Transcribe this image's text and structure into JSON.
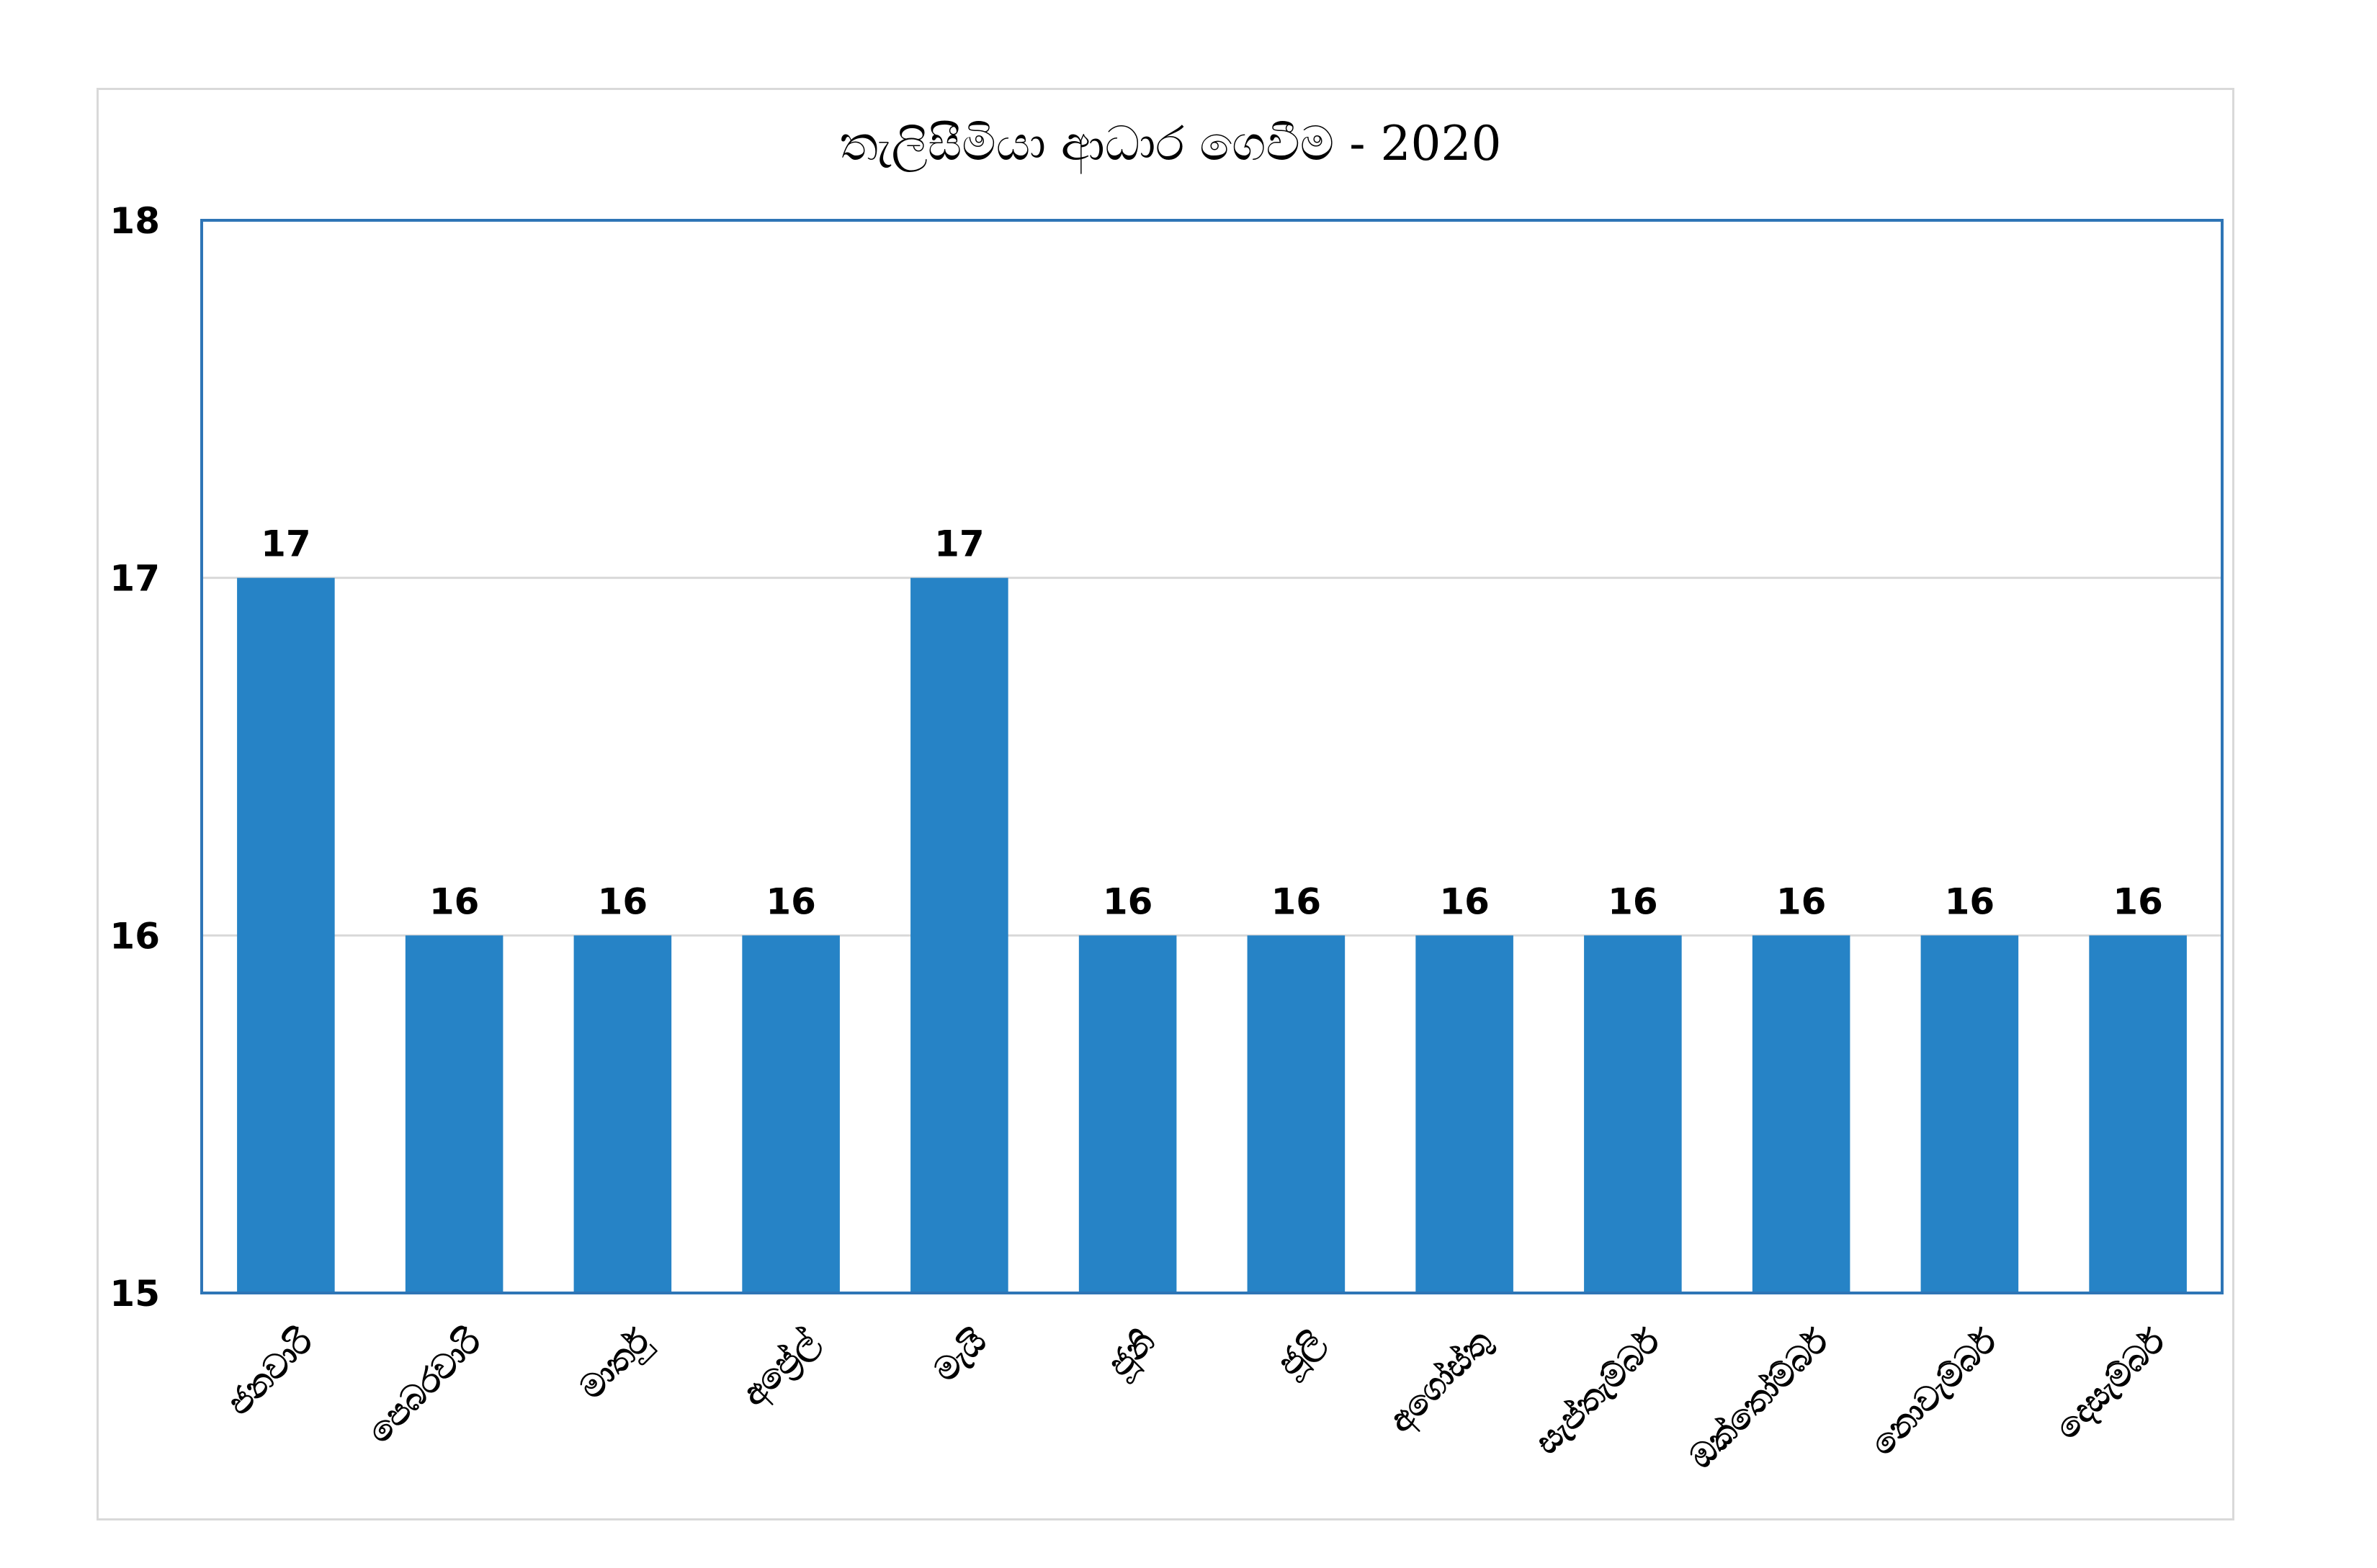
{
  "chart_data": {
    "type": "bar",
    "title": "තැලිසීමියා ආධාර ගෙවීම - 2020",
    "xlabel": "",
    "ylabel": "",
    "categories": [
      "ජනවාරි",
      "පෙබරවාරි",
      "මාර්තු",
      "අප්‍රේල්",
      "මැයි",
      "ජූනි",
      "ජූලි",
      "අගෝස්තු",
      "සැප්තැම්බර්",
      "ඔක්තෝම්බර්",
      "නොවැම්බර්",
      "දෙසැම්බර්"
    ],
    "values": [
      17,
      16,
      16,
      16,
      17,
      16,
      16,
      16,
      16,
      16,
      16,
      16
    ],
    "ylim": [
      15,
      18
    ],
    "yticks": [
      15,
      16,
      17,
      18
    ],
    "grid": true,
    "legend": "none",
    "data_labels": true,
    "colors": {
      "bar": "#2683c6",
      "plot_border": "#2e75b6",
      "grid": "#d9d9d9"
    }
  }
}
